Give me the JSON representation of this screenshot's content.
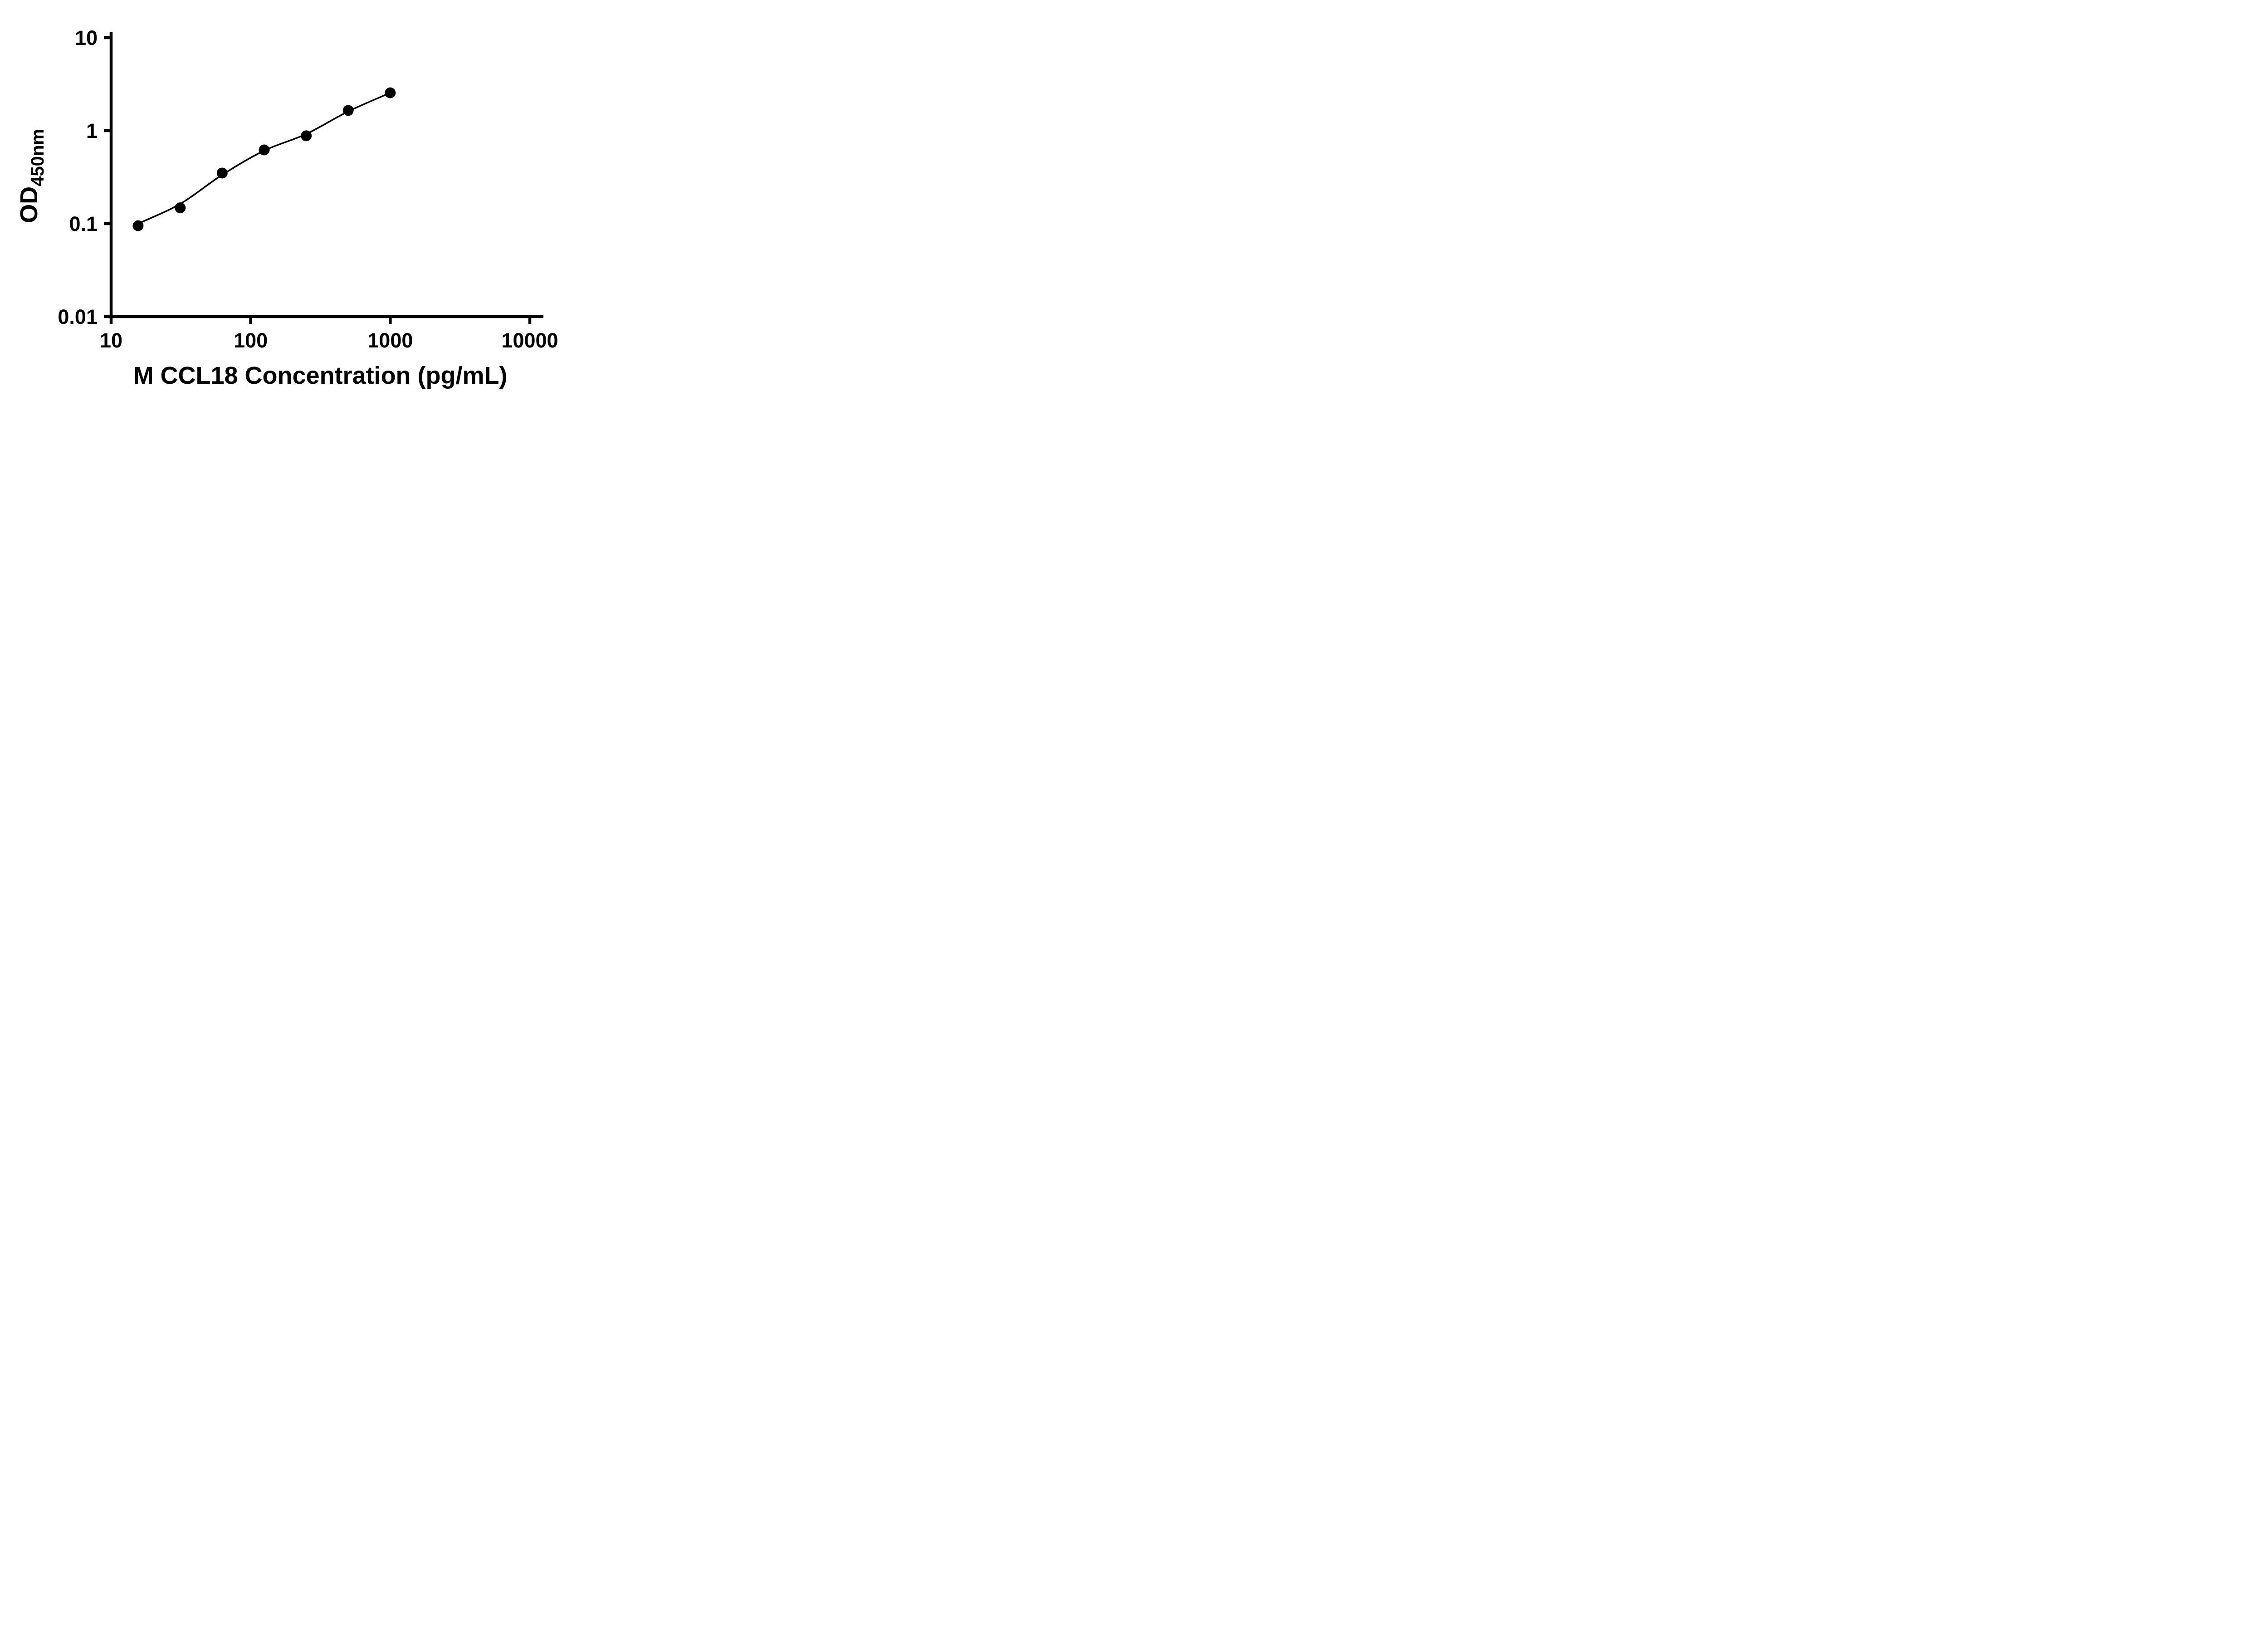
{
  "chart_data": {
    "type": "scatter",
    "title": "",
    "xlabel": "M CCL18 Concentration (pg/mL)",
    "ylabel_main": "OD",
    "ylabel_sub": "450nm",
    "x_scale": "log",
    "y_scale": "log",
    "xlim": [
      10,
      10000
    ],
    "ylim": [
      0.01,
      10
    ],
    "x_ticks": [
      10,
      100,
      1000,
      10000
    ],
    "x_tick_labels": [
      "10",
      "100",
      "1000",
      "10000"
    ],
    "y_ticks": [
      0.01,
      0.1,
      1,
      10
    ],
    "y_tick_labels": [
      "0.01",
      "0.1",
      "1",
      "10"
    ],
    "x": [
      15.6,
      31.25,
      62.5,
      125,
      250,
      500,
      1000
    ],
    "y": [
      0.095,
      0.148,
      0.35,
      0.62,
      0.88,
      1.65,
      2.55
    ],
    "fit_y": [
      0.1,
      0.163,
      0.335,
      0.61,
      0.92,
      1.61,
      2.55
    ],
    "has_fit_line": true,
    "marker_color": "#000000",
    "line_color": "#000000",
    "background_color": "#ffffff",
    "grid": false,
    "legend": "none"
  }
}
